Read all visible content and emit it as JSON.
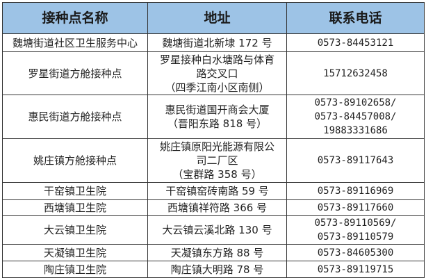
{
  "header": {
    "name": "接种点名称",
    "address": "地址",
    "phone": "联系电话",
    "bg": "#9dc3e6"
  },
  "rows": [
    {
      "name": "魏塘街道社区卫生服务中心",
      "address": [
        "魏塘街道北新埭 172 号"
      ],
      "phone": [
        "0573-84453121"
      ]
    },
    {
      "name": "罗星街道方舱接种点",
      "address": [
        "罗星接种白水塘路与体育",
        "路交叉口",
        "（四季江南小区南侧）"
      ],
      "phone": [
        "15712632458"
      ]
    },
    {
      "name": "惠民街道方舱接种点",
      "address": [
        "惠民街道国开商会大厦",
        "（晋阳东路 818 号）"
      ],
      "phone": [
        "0573-89102658/",
        "0573-84457008/",
        "19883331686"
      ]
    },
    {
      "name": "姚庄镇方舱接种点",
      "address": [
        "姚庄镇原阳光能源有限公",
        "司二厂区",
        "（宝群路 358 号）"
      ],
      "phone": [
        "0573-89117643"
      ]
    },
    {
      "name": "干窑镇卫生院",
      "address": [
        "干窑镇窑砖南路 59 号"
      ],
      "phone": [
        "0573-89116969"
      ]
    },
    {
      "name": "西塘镇卫生院",
      "address": [
        "西塘镇祥符路 366 号"
      ],
      "phone": [
        "0573-89117660"
      ]
    },
    {
      "name": "大云镇卫生院",
      "address": [
        "大云镇云溪北路 130 号"
      ],
      "phone": [
        "0573-89110569/",
        "0573-89110579"
      ]
    },
    {
      "name": "天凝镇卫生院",
      "address": [
        "天凝镇东方路 88 号"
      ],
      "phone": [
        "0573-84605300"
      ]
    },
    {
      "name": "陶庄镇卫生院",
      "address": [
        "陶庄镇大明路 78 号"
      ],
      "phone": [
        "0573-89119715"
      ]
    }
  ]
}
